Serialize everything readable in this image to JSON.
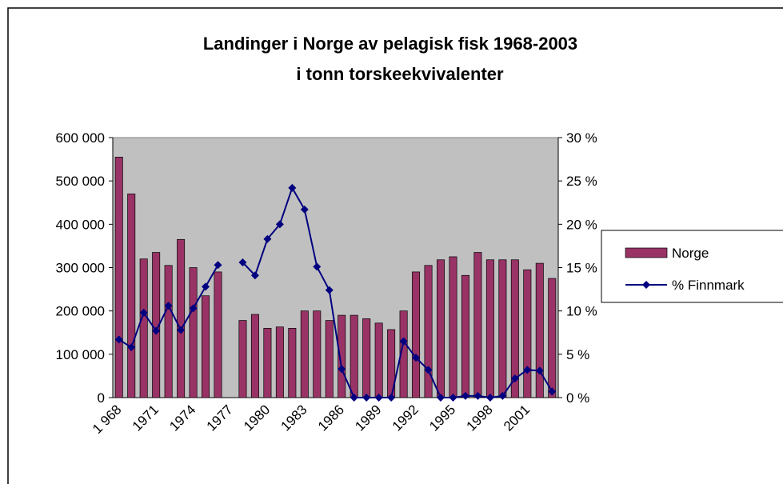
{
  "chart_data": {
    "type": "bar_line",
    "title": [
      "Landinger i Norge av pelagisk fisk 1968-2003",
      "i tonn torskeekvivalenter"
    ],
    "categories": [
      "1 968",
      null,
      null,
      "1971",
      null,
      null,
      "1974",
      null,
      null,
      "1977",
      null,
      null,
      "1980",
      null,
      null,
      "1983",
      null,
      null,
      "1986",
      null,
      null,
      "1989",
      null,
      null,
      "1992",
      null,
      null,
      "1995",
      null,
      null,
      "1998",
      null,
      null,
      "2001",
      null,
      null
    ],
    "series": [
      {
        "name": "Norge",
        "color": "#993366",
        "kind": "bar",
        "values": [
          555000,
          470000,
          320000,
          335000,
          305000,
          365000,
          300000,
          235000,
          290000,
          null,
          178000,
          192000,
          160000,
          163000,
          160000,
          200000,
          200000,
          178000,
          190000,
          190000,
          182000,
          172000,
          157000,
          200000,
          290000,
          305000,
          318000,
          325000,
          282000,
          335000,
          318000,
          318000,
          318000,
          295000,
          310000,
          275000
        ]
      },
      {
        "name": "% Finnmark",
        "color": "#000080",
        "kind": "line",
        "axis": "y2",
        "values": [
          6.7,
          5.8,
          9.8,
          7.7,
          10.6,
          7.8,
          10.3,
          12.8,
          15.3,
          null,
          15.6,
          14.1,
          18.3,
          20,
          24.2,
          21.7,
          15.1,
          12.4,
          3.3,
          0,
          0,
          0,
          0,
          6.5,
          4.6,
          3.2,
          0,
          0,
          0.2,
          0.2,
          0,
          0.2,
          2.2,
          3.2,
          3.1,
          0.7
        ]
      }
    ],
    "ylim": [
      0,
      600000
    ],
    "yticks": [
      0,
      {
        "value": 100000,
        "label": "100 000"
      },
      {
        "value": 200000,
        "label": "200 000"
      },
      {
        "value": 300000,
        "label": "300 000"
      },
      {
        "value": 400000,
        "label": "400 000"
      },
      {
        "value": 500000,
        "label": "500 000"
      },
      {
        "value": 600000,
        "label": "600 000"
      }
    ],
    "y2lim": [
      0,
      30
    ],
    "y2ticks": [
      {
        "value": 0,
        "label": "0 %"
      },
      {
        "value": 5,
        "label": "5 %"
      },
      {
        "value": 10,
        "label": "10 %"
      },
      {
        "value": 15,
        "label": "15 %"
      },
      {
        "value": 20,
        "label": "20 %"
      },
      {
        "value": 25,
        "label": "25 %"
      },
      {
        "value": 30,
        "label": "30 %"
      }
    ],
    "grid": false,
    "legend": "right",
    "plot_background": "#c0c0c0"
  }
}
